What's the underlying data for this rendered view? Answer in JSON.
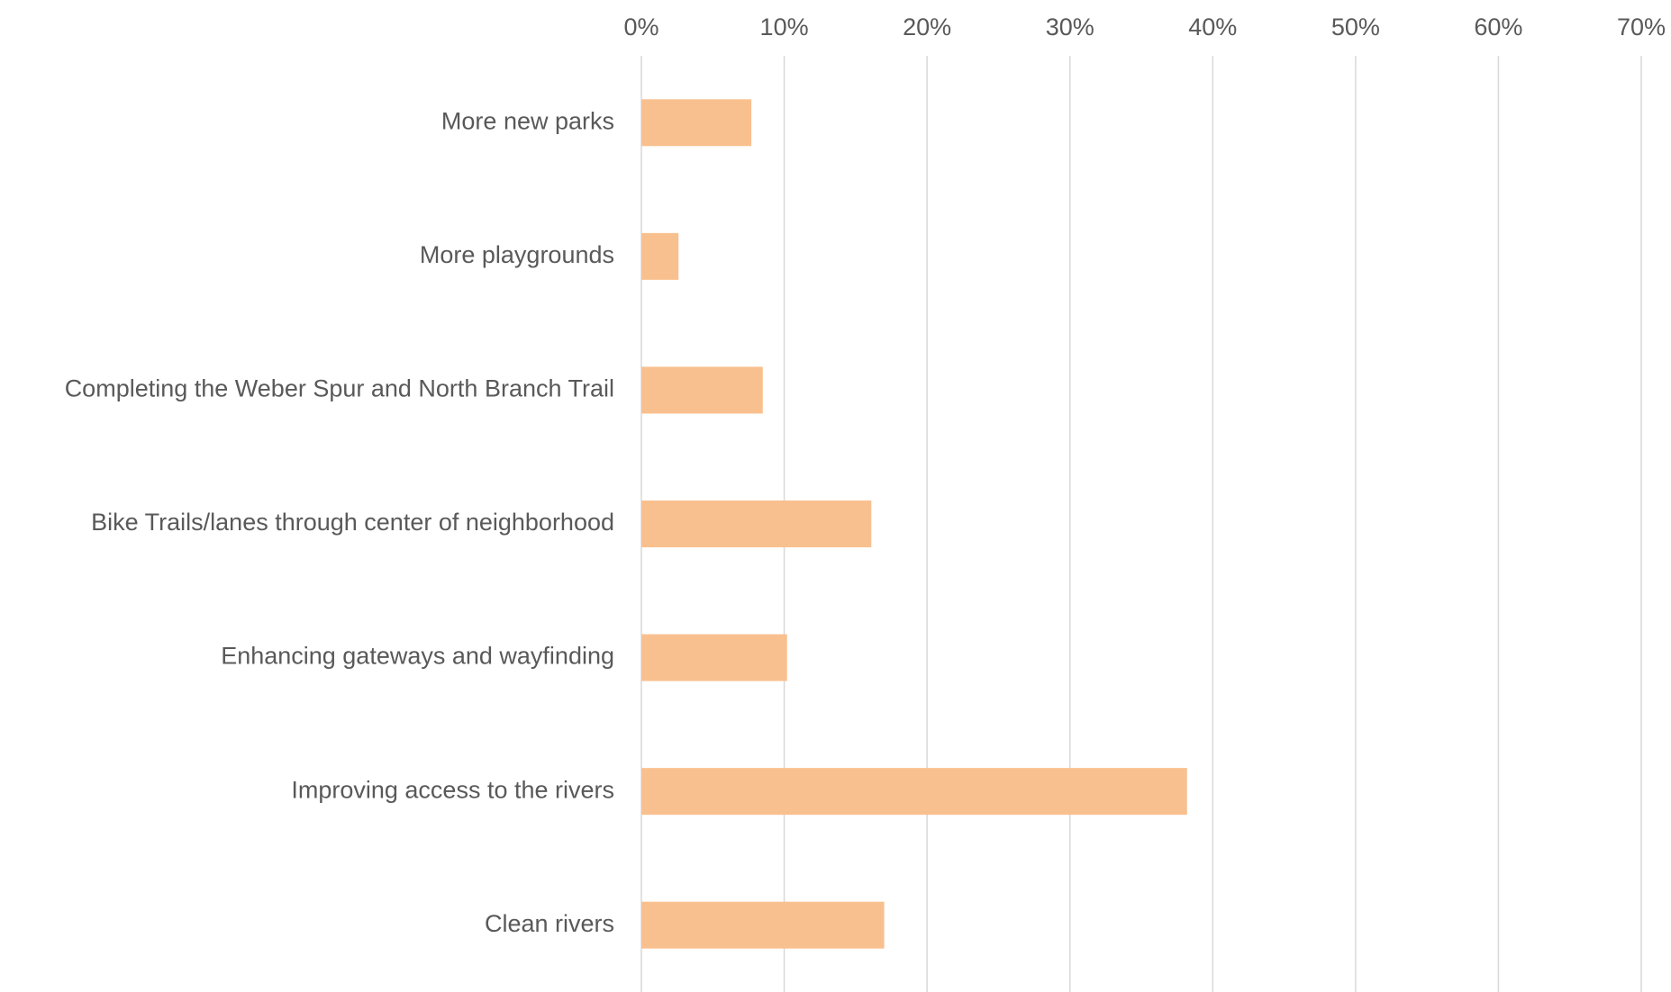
{
  "chart_data": {
    "type": "bar",
    "orientation": "horizontal",
    "categories": [
      "More new parks",
      "More playgrounds",
      "Completing the Weber Spur and North Branch Trail",
      "Bike Trails/lanes through center of neighborhood",
      "Enhancing gateways and wayfinding",
      "Improving access to the rivers",
      "Clean rivers"
    ],
    "values": [
      7.7,
      2.6,
      8.5,
      16.1,
      10.2,
      38.2,
      17.0
    ],
    "value_unit": "percent",
    "xlim": [
      0,
      70
    ],
    "x_ticks": [
      "0%",
      "10%",
      "20%",
      "30%",
      "40%",
      "50%",
      "60%",
      "70%"
    ],
    "x_axis_position": "top",
    "grid": true,
    "legend": "none",
    "title": "",
    "xlabel": "",
    "ylabel": "",
    "colors": {
      "bar": "#F9C08F",
      "grid": "#D9D9D9",
      "text": "#595959"
    }
  }
}
